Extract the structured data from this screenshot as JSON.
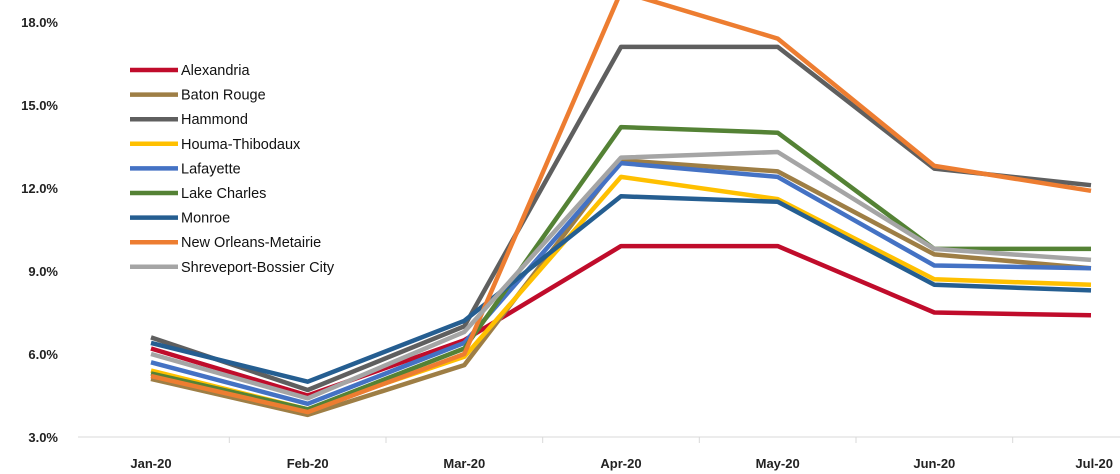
{
  "chart_data": {
    "type": "line",
    "title": "",
    "xlabel": "",
    "ylabel": "",
    "categories": [
      "Jan-20",
      "Feb-20",
      "Mar-20",
      "Apr-20",
      "May-20",
      "Jun-20",
      "Jul-20"
    ],
    "ylim": [
      3.0,
      18.0
    ],
    "yticks": [
      3.0,
      6.0,
      9.0,
      12.0,
      15.0,
      18.0
    ],
    "ytick_labels": [
      "3.0%",
      "6.0%",
      "9.0%",
      "12.0%",
      "15.0%",
      "18.0%"
    ],
    "grid": false,
    "legend_position": "top-left",
    "series": [
      {
        "name": "Alexandria",
        "color": "#c00c2b",
        "values": [
          6.2,
          4.5,
          6.5,
          9.9,
          9.9,
          7.5,
          7.4
        ]
      },
      {
        "name": "Baton Rouge",
        "color": "#9e7e45",
        "values": [
          5.1,
          3.8,
          5.6,
          13.0,
          12.6,
          9.6,
          9.1
        ]
      },
      {
        "name": "Hammond",
        "color": "#5f5f5f",
        "values": [
          6.6,
          4.7,
          7.0,
          17.1,
          17.1,
          12.7,
          12.1
        ]
      },
      {
        "name": "Houma-Thibodaux",
        "color": "#ffc000",
        "values": [
          5.4,
          4.0,
          5.9,
          12.4,
          11.6,
          8.7,
          8.5
        ]
      },
      {
        "name": "Lafayette",
        "color": "#4472c4",
        "values": [
          5.7,
          4.2,
          6.4,
          12.9,
          12.4,
          9.2,
          9.1
        ]
      },
      {
        "name": "Lake Charles",
        "color": "#548235",
        "values": [
          5.3,
          4.0,
          6.2,
          14.2,
          14.0,
          9.8,
          9.8
        ]
      },
      {
        "name": "Monroe",
        "color": "#255e91",
        "values": [
          6.4,
          5.0,
          7.2,
          11.7,
          11.5,
          8.5,
          8.3
        ]
      },
      {
        "name": "New Orleans-Metairie",
        "color": "#ed7d31",
        "values": [
          5.2,
          3.9,
          6.0,
          19.1,
          17.4,
          12.8,
          11.9
        ]
      },
      {
        "name": "Shreveport-Bossier City",
        "color": "#a5a5a5",
        "values": [
          6.0,
          4.4,
          6.8,
          13.1,
          13.3,
          9.8,
          9.4
        ]
      }
    ]
  }
}
